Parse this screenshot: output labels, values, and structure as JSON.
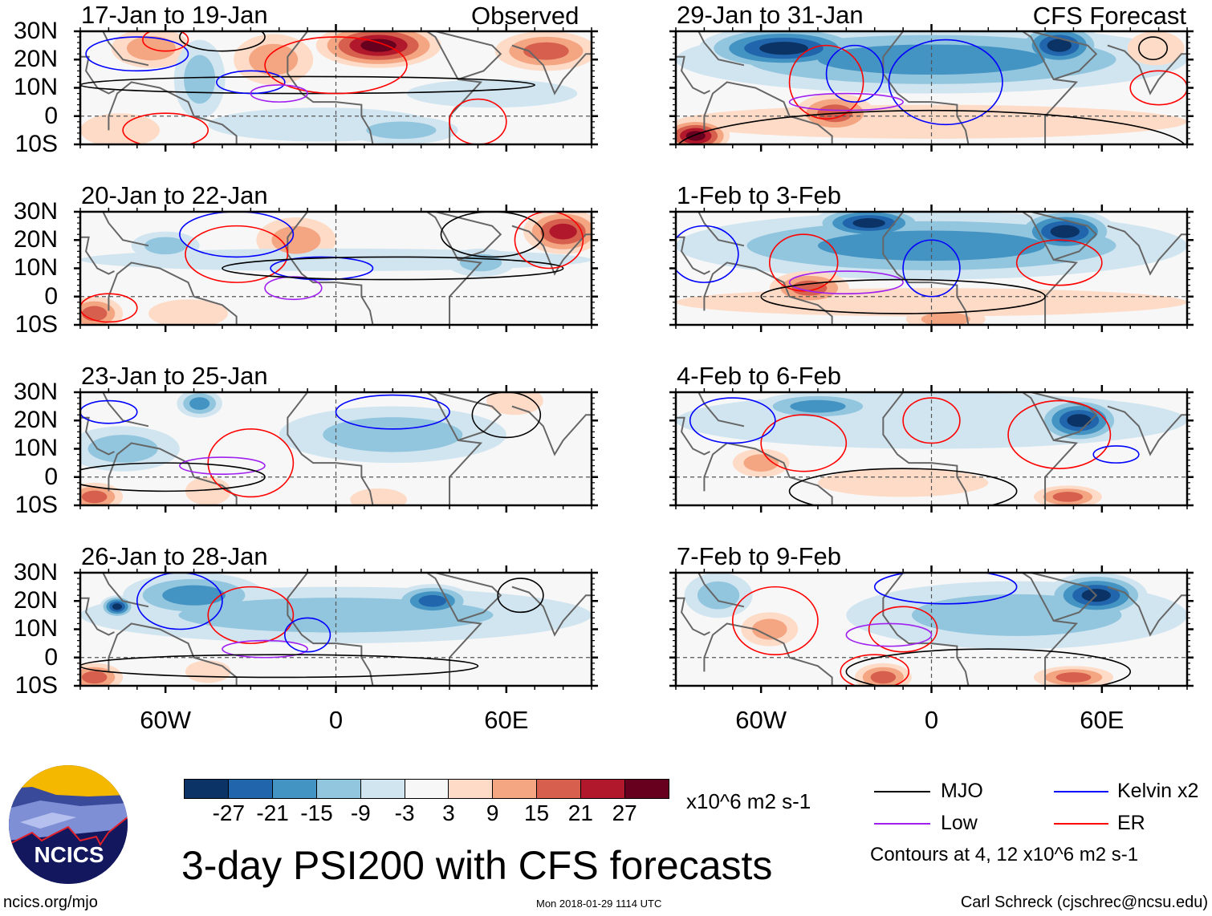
{
  "title": "3-day PSI200 with CFS forecasts",
  "column_headers": {
    "left": "Observed",
    "right": "CFS Forecast"
  },
  "lat_labels": [
    "30N",
    "20N",
    "10N",
    "0",
    "10S"
  ],
  "lon_labels": [
    "60W",
    "0",
    "60E"
  ],
  "colorbar": {
    "labels": [
      "-27",
      "-21",
      "-15",
      "-9",
      "-3",
      "3",
      "9",
      "15",
      "21",
      "27"
    ],
    "colors": [
      "#0b3366",
      "#2166ac",
      "#4393c3",
      "#92c5de",
      "#d1e5f0",
      "#f7f7f7",
      "#fddbc7",
      "#f4a582",
      "#d6604d",
      "#b2182b",
      "#67001f"
    ],
    "units": "x10^6 m2 s-1"
  },
  "legend": {
    "items": [
      {
        "label": "MJO",
        "color": "#000000"
      },
      {
        "label": "Kelvin x2",
        "color": "#0000ff"
      },
      {
        "label": "Low",
        "color": "#a020f0"
      },
      {
        "label": "ER",
        "color": "#ff0000"
      }
    ],
    "note": "Contours at 4, 12 x10^6 m2 s-1"
  },
  "logo": {
    "text": "NCICS"
  },
  "footer": {
    "url": "ncics.org/mjo",
    "timestamp": "Mon 2018-01-29 1114 UTC",
    "credit": "Carl Schreck (cjschrec@ncsu.edu)"
  },
  "panels": [
    {
      "title": "17-Jan to 19-Jan",
      "column": "left",
      "row": 0,
      "anomalies": [
        [
          -65,
          24,
          14,
          7,
          12
        ],
        [
          -22,
          20,
          14,
          9,
          15
        ],
        [
          15,
          25,
          22,
          8,
          30
        ],
        [
          74,
          23,
          18,
          7,
          21
        ],
        [
          -76,
          -5,
          14,
          6,
          9
        ],
        [
          -48,
          13,
          9,
          14,
          -9
        ],
        [
          23,
          -5,
          20,
          5,
          -9
        ],
        [
          55,
          8,
          30,
          5,
          -3
        ],
        [
          -5,
          -3,
          40,
          6,
          -3
        ]
      ],
      "contours": [
        [
          "MJO",
          -40,
          28,
          15,
          5
        ],
        [
          "MJO",
          -10,
          11,
          80,
          3
        ],
        [
          "Kelvin",
          -70,
          22,
          18,
          6
        ],
        [
          "Kelvin",
          -30,
          12,
          12,
          4
        ],
        [
          "ER",
          -60,
          27,
          8,
          4
        ],
        [
          "ER",
          0,
          18,
          25,
          10
        ],
        [
          "Low",
          -20,
          8,
          10,
          3
        ],
        [
          "ER",
          -60,
          -5,
          15,
          6
        ],
        [
          "ER",
          50,
          -2,
          10,
          8
        ]
      ]
    },
    {
      "title": "29-Jan to 31-Jan",
      "column": "right",
      "row": 0,
      "anomalies": [
        [
          -52,
          24,
          30,
          8,
          -30
        ],
        [
          45,
          25,
          15,
          8,
          -30
        ],
        [
          0,
          20,
          90,
          12,
          -15
        ],
        [
          -34,
          1,
          14,
          7,
          21
        ],
        [
          -83,
          -7,
          12,
          6,
          30
        ],
        [
          79,
          24,
          10,
          6,
          9
        ],
        [
          0,
          -2,
          90,
          6,
          6
        ]
      ],
      "contours": [
        [
          "ER",
          -37,
          12,
          13,
          13
        ],
        [
          "Kelvin",
          -27,
          15,
          10,
          10
        ],
        [
          "Kelvin",
          5,
          12,
          20,
          15
        ],
        [
          "MJO",
          78,
          24,
          5,
          4
        ],
        [
          "MJO",
          0,
          -12,
          90,
          14
        ],
        [
          "Low",
          -30,
          5,
          20,
          3
        ],
        [
          "ER",
          80,
          10,
          10,
          6
        ]
      ]
    },
    {
      "title": "20-Jan to 22-Jan",
      "column": "left",
      "row": 1,
      "anomalies": [
        [
          -14,
          20,
          14,
          8,
          15
        ],
        [
          80,
          23,
          14,
          8,
          27
        ],
        [
          -85,
          -6,
          10,
          6,
          21
        ],
        [
          -52,
          -6,
          14,
          5,
          9
        ],
        [
          0,
          13,
          90,
          4,
          -3
        ],
        [
          51,
          12,
          12,
          5,
          -9
        ],
        [
          -60,
          18,
          12,
          5,
          -9
        ]
      ],
      "contours": [
        [
          "ER",
          -35,
          15,
          18,
          10
        ],
        [
          "Kelvin",
          -35,
          22,
          20,
          8
        ],
        [
          "MJO",
          55,
          22,
          18,
          8
        ],
        [
          "Low",
          -15,
          3,
          10,
          4
        ],
        [
          "Kelvin",
          -5,
          10,
          18,
          4
        ],
        [
          "MJO",
          20,
          10,
          60,
          4
        ],
        [
          "ER",
          75,
          20,
          12,
          10
        ],
        [
          "ER",
          -80,
          -4,
          10,
          5
        ]
      ]
    },
    {
      "title": "1-Feb to 3-Feb",
      "column": "right",
      "row": 1,
      "anomalies": [
        [
          -22,
          26,
          20,
          6,
          -30
        ],
        [
          47,
          23,
          18,
          8,
          -30
        ],
        [
          0,
          18,
          90,
          12,
          -15
        ],
        [
          -43,
          3,
          14,
          6,
          21
        ],
        [
          5,
          -8,
          14,
          4,
          15
        ],
        [
          0,
          -2,
          90,
          5,
          6
        ]
      ],
      "contours": [
        [
          "ER",
          -45,
          12,
          12,
          10
        ],
        [
          "Kelvin",
          0,
          10,
          10,
          10
        ],
        [
          "ER",
          45,
          12,
          15,
          8
        ],
        [
          "Kelvin",
          -80,
          15,
          12,
          10
        ],
        [
          "Low",
          -30,
          5,
          20,
          4
        ],
        [
          "MJO",
          -10,
          0,
          50,
          6
        ]
      ]
    },
    {
      "title": "23-Jan to 25-Jan",
      "column": "left",
      "row": 2,
      "anomalies": [
        [
          20,
          15,
          40,
          10,
          -9
        ],
        [
          -48,
          26,
          8,
          5,
          -15
        ],
        [
          -85,
          -7,
          10,
          5,
          21
        ],
        [
          -45,
          -5,
          8,
          5,
          9
        ],
        [
          15,
          -8,
          10,
          4,
          9
        ],
        [
          63,
          27,
          10,
          5,
          9
        ],
        [
          -75,
          10,
          20,
          8,
          -9
        ]
      ],
      "contours": [
        [
          "Kelvin",
          20,
          23,
          20,
          6
        ],
        [
          "MJO",
          60,
          22,
          12,
          8
        ],
        [
          "ER",
          -30,
          5,
          15,
          12
        ],
        [
          "Kelvin",
          -80,
          23,
          10,
          4
        ],
        [
          "Low",
          -40,
          4,
          15,
          3
        ],
        [
          "MJO",
          -60,
          0,
          35,
          5
        ]
      ]
    },
    {
      "title": "4-Feb to 6-Feb",
      "column": "right",
      "row": 2,
      "anomalies": [
        [
          52,
          20,
          15,
          8,
          -30
        ],
        [
          -40,
          25,
          22,
          5,
          -15
        ],
        [
          -60,
          5,
          10,
          5,
          15
        ],
        [
          -10,
          -2,
          30,
          5,
          9
        ],
        [
          48,
          -7,
          12,
          4,
          21
        ],
        [
          0,
          20,
          90,
          10,
          -3
        ]
      ],
      "contours": [
        [
          "ER",
          45,
          15,
          18,
          12
        ],
        [
          "ER",
          -45,
          12,
          15,
          10
        ],
        [
          "Kelvin",
          65,
          8,
          8,
          3
        ],
        [
          "MJO",
          -10,
          -5,
          40,
          8
        ],
        [
          "ER",
          0,
          20,
          10,
          8
        ],
        [
          "Kelvin",
          -70,
          20,
          15,
          8
        ]
      ]
    },
    {
      "title": "26-Jan to 28-Jan",
      "column": "left",
      "row": 3,
      "anomalies": [
        [
          -50,
          22,
          25,
          8,
          -15
        ],
        [
          -77,
          18,
          6,
          4,
          -30
        ],
        [
          34,
          20,
          14,
          6,
          -21
        ],
        [
          0,
          15,
          90,
          10,
          -9
        ],
        [
          -85,
          -7,
          10,
          5,
          21
        ],
        [
          -45,
          -5,
          8,
          4,
          9
        ]
      ],
      "contours": [
        [
          "Kelvin",
          -55,
          20,
          15,
          10
        ],
        [
          "ER",
          -30,
          15,
          15,
          10
        ],
        [
          "MJO",
          65,
          22,
          8,
          6
        ],
        [
          "Low",
          -25,
          3,
          15,
          3
        ],
        [
          "Kelvin",
          -10,
          8,
          8,
          6
        ],
        [
          "MJO",
          -20,
          -3,
          70,
          4
        ]
      ]
    },
    {
      "title": "7-Feb to 9-Feb",
      "column": "right",
      "row": 3,
      "anomalies": [
        [
          58,
          22,
          18,
          8,
          -30
        ],
        [
          -75,
          22,
          12,
          8,
          -9
        ],
        [
          -57,
          10,
          10,
          6,
          15
        ],
        [
          -17,
          -7,
          10,
          5,
          21
        ],
        [
          50,
          -7,
          14,
          4,
          21
        ],
        [
          30,
          15,
          60,
          12,
          -9
        ]
      ],
      "contours": [
        [
          "ER",
          -55,
          13,
          15,
          12
        ],
        [
          "ER",
          -10,
          10,
          12,
          8
        ],
        [
          "ER",
          -20,
          -5,
          12,
          6
        ],
        [
          "Low",
          -15,
          8,
          15,
          4
        ],
        [
          "Kelvin",
          5,
          25,
          25,
          6
        ],
        [
          "MJO",
          20,
          -5,
          50,
          8
        ]
      ]
    }
  ]
}
